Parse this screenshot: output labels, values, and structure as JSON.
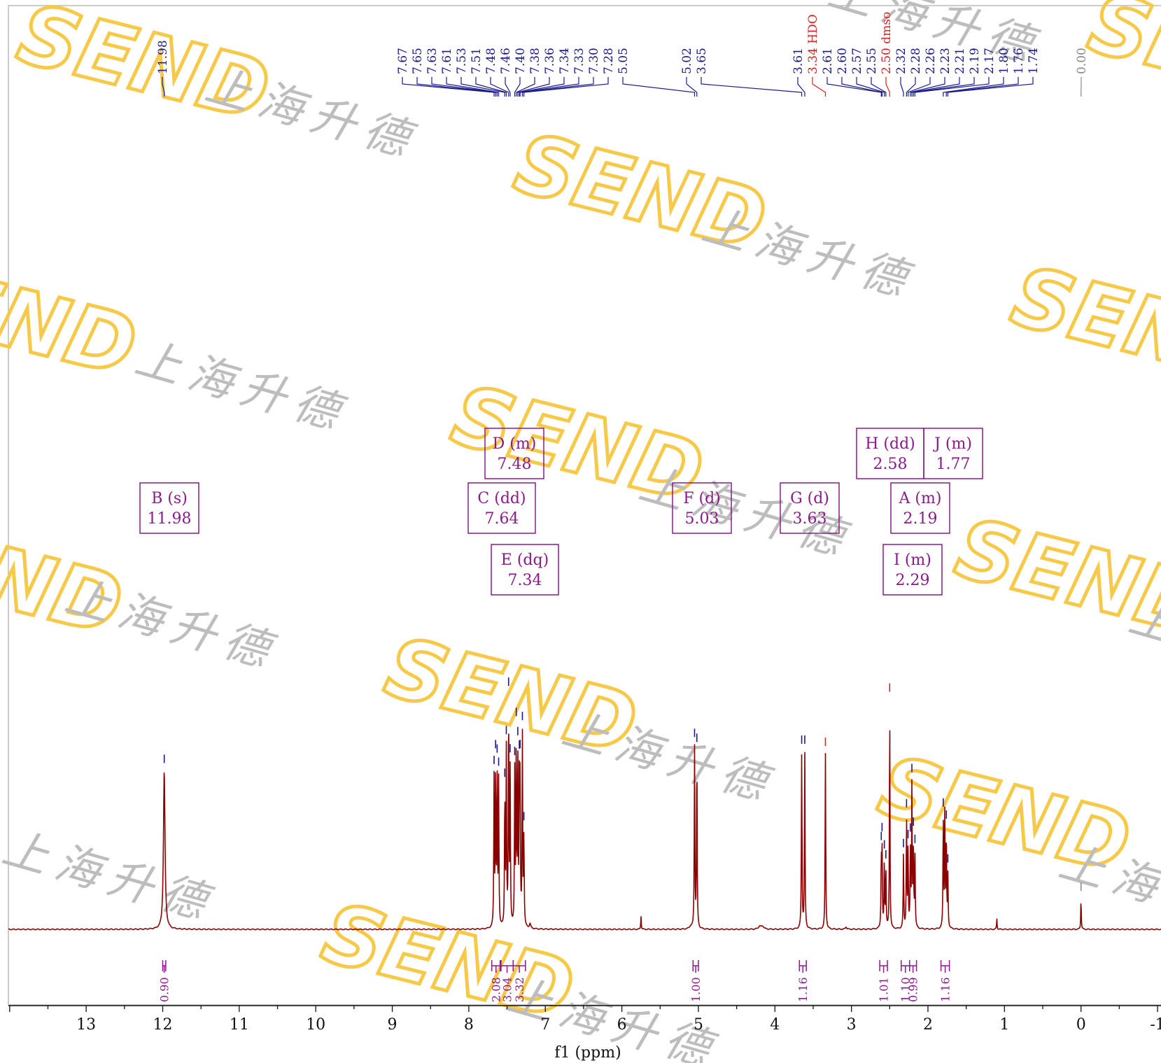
{
  "chart_data": {
    "type": "line",
    "xlabel": "f1 (ppm)",
    "xlim": [
      14,
      -1
    ],
    "x_ticks": [
      "13",
      "12",
      "11",
      "10",
      "9",
      "8",
      "7",
      "6",
      "5",
      "4",
      "3",
      "2",
      "1",
      "0",
      "-1"
    ],
    "peak_labels": [
      {
        "text": "11.98",
        "ppm": 11.98,
        "color": "#1a1a8c"
      },
      {
        "text": "7.67",
        "ppm": 7.67,
        "color": "#1a1a8c"
      },
      {
        "text": "7.65",
        "ppm": 7.65,
        "color": "#1a1a8c"
      },
      {
        "text": "7.63",
        "ppm": 7.63,
        "color": "#1a1a8c"
      },
      {
        "text": "7.61",
        "ppm": 7.61,
        "color": "#1a1a8c"
      },
      {
        "text": "7.53",
        "ppm": 7.53,
        "color": "#1a1a8c"
      },
      {
        "text": "7.51",
        "ppm": 7.51,
        "color": "#1a1a8c"
      },
      {
        "text": "7.48",
        "ppm": 7.48,
        "color": "#1a1a8c"
      },
      {
        "text": "7.46",
        "ppm": 7.46,
        "color": "#1a1a8c"
      },
      {
        "text": "7.40",
        "ppm": 7.4,
        "color": "#1a1a8c"
      },
      {
        "text": "7.38",
        "ppm": 7.38,
        "color": "#1a1a8c"
      },
      {
        "text": "7.36",
        "ppm": 7.36,
        "color": "#1a1a8c"
      },
      {
        "text": "7.34",
        "ppm": 7.34,
        "color": "#1a1a8c"
      },
      {
        "text": "7.33",
        "ppm": 7.33,
        "color": "#1a1a8c"
      },
      {
        "text": "7.30",
        "ppm": 7.3,
        "color": "#1a1a8c"
      },
      {
        "text": "7.28",
        "ppm": 7.28,
        "color": "#1a1a8c"
      },
      {
        "text": "5.05",
        "ppm": 5.05,
        "color": "#1a1a8c"
      },
      {
        "text": "5.02",
        "ppm": 5.02,
        "color": "#1a1a8c"
      },
      {
        "text": "3.65",
        "ppm": 3.65,
        "color": "#1a1a8c"
      },
      {
        "text": "3.61",
        "ppm": 3.61,
        "color": "#1a1a8c"
      },
      {
        "text": "3.34 HDO",
        "ppm": 3.34,
        "color": "#e02020"
      },
      {
        "text": "2.61",
        "ppm": 2.61,
        "color": "#1a1a8c"
      },
      {
        "text": "2.60",
        "ppm": 2.6,
        "color": "#1a1a8c"
      },
      {
        "text": "2.57",
        "ppm": 2.57,
        "color": "#1a1a8c"
      },
      {
        "text": "2.55",
        "ppm": 2.55,
        "color": "#1a1a8c"
      },
      {
        "text": "2.50 dmso",
        "ppm": 2.5,
        "color": "#e02020"
      },
      {
        "text": "2.32",
        "ppm": 2.32,
        "color": "#1a1a8c"
      },
      {
        "text": "2.28",
        "ppm": 2.28,
        "color": "#1a1a8c"
      },
      {
        "text": "2.26",
        "ppm": 2.26,
        "color": "#1a1a8c"
      },
      {
        "text": "2.23",
        "ppm": 2.23,
        "color": "#1a1a8c"
      },
      {
        "text": "2.21",
        "ppm": 2.21,
        "color": "#1a1a8c"
      },
      {
        "text": "2.19",
        "ppm": 2.19,
        "color": "#1a1a8c"
      },
      {
        "text": "2.17",
        "ppm": 2.17,
        "color": "#1a1a8c"
      },
      {
        "text": "1.80",
        "ppm": 1.8,
        "color": "#1a1a8c"
      },
      {
        "text": "1.76",
        "ppm": 1.76,
        "color": "#1a1a8c"
      },
      {
        "text": "1.74",
        "ppm": 1.74,
        "color": "#1a1a8c"
      },
      {
        "text": "0.00",
        "ppm": 0.0,
        "color": "#888888"
      }
    ],
    "multiplets": [
      {
        "label": "B (s)",
        "shift": "11.98"
      },
      {
        "label": "D (m)",
        "shift": "7.48"
      },
      {
        "label": "C (dd)",
        "shift": "7.64"
      },
      {
        "label": "E (dq)",
        "shift": "7.34"
      },
      {
        "label": "F (d)",
        "shift": "5.03"
      },
      {
        "label": "G (d)",
        "shift": "3.63"
      },
      {
        "label": "H (dd)",
        "shift": "2.58"
      },
      {
        "label": "J (m)",
        "shift": "1.77"
      },
      {
        "label": "A (m)",
        "shift": "2.19"
      },
      {
        "label": "I (m)",
        "shift": "2.29"
      }
    ],
    "integrals": [
      {
        "text": "0.90",
        "from": 12.0,
        "to": 11.96
      },
      {
        "text": "2.08",
        "from": 7.7,
        "to": 7.59
      },
      {
        "text": "3.04",
        "from": 7.58,
        "to": 7.42
      },
      {
        "text": "3.32",
        "from": 7.42,
        "to": 7.26
      },
      {
        "text": "1.00",
        "from": 5.07,
        "to": 5.0
      },
      {
        "text": "1.16",
        "from": 3.68,
        "to": 3.59
      },
      {
        "text": "1.01",
        "from": 2.63,
        "to": 2.53
      },
      {
        "text": "1.10",
        "from": 2.35,
        "to": 2.24
      },
      {
        "text": "0.99",
        "from": 2.24,
        "to": 2.15
      },
      {
        "text": "1.16",
        "from": 1.83,
        "to": 1.72
      }
    ],
    "peaks": [
      {
        "ppm": 11.98,
        "height": 0.66,
        "width": 0.012
      },
      {
        "ppm": 7.67,
        "height": 0.61,
        "width": 0.0045
      },
      {
        "ppm": 7.65,
        "height": 0.65,
        "width": 0.0045
      },
      {
        "ppm": 7.63,
        "height": 0.63,
        "width": 0.0045
      },
      {
        "ppm": 7.61,
        "height": 0.6,
        "width": 0.0045
      },
      {
        "ppm": 7.53,
        "height": 0.55,
        "width": 0.0045
      },
      {
        "ppm": 7.51,
        "height": 0.72,
        "width": 0.0045
      },
      {
        "ppm": 7.48,
        "height": 0.92,
        "width": 0.0045
      },
      {
        "ppm": 7.46,
        "height": 0.64,
        "width": 0.0045
      },
      {
        "ppm": 7.4,
        "height": 0.63,
        "width": 0.0045
      },
      {
        "ppm": 7.38,
        "height": 0.77,
        "width": 0.0045
      },
      {
        "ppm": 7.36,
        "height": 0.68,
        "width": 0.0045
      },
      {
        "ppm": 7.34,
        "height": 0.56,
        "width": 0.0045
      },
      {
        "ppm": 7.33,
        "height": 0.58,
        "width": 0.0045
      },
      {
        "ppm": 7.3,
        "height": 0.79,
        "width": 0.0045
      },
      {
        "ppm": 7.28,
        "height": 0.37,
        "width": 0.0045
      },
      {
        "ppm": 7.2,
        "height": 0.02,
        "width": 0.01
      },
      {
        "ppm": 5.75,
        "height": 0.055,
        "width": 0.004
      },
      {
        "ppm": 5.1,
        "height": 0.01,
        "width": 0.02
      },
      {
        "ppm": 5.05,
        "height": 0.75,
        "width": 0.0045
      },
      {
        "ppm": 5.02,
        "height": 0.73,
        "width": 0.0045
      },
      {
        "ppm": 4.2,
        "height": 0.012,
        "width": 0.02
      },
      {
        "ppm": 4.16,
        "height": 0.012,
        "width": 0.02
      },
      {
        "ppm": 3.65,
        "height": 0.73,
        "width": 0.0045
      },
      {
        "ppm": 3.61,
        "height": 0.73,
        "width": 0.0045
      },
      {
        "ppm": 3.34,
        "height": 0.73,
        "width": 0.0045
      },
      {
        "ppm": 3.07,
        "height": 0.01,
        "width": 0.01
      },
      {
        "ppm": 2.61,
        "height": 0.28,
        "width": 0.0045
      },
      {
        "ppm": 2.6,
        "height": 0.32,
        "width": 0.0045
      },
      {
        "ppm": 2.57,
        "height": 0.28,
        "width": 0.0045
      },
      {
        "ppm": 2.55,
        "height": 0.24,
        "width": 0.0045
      },
      {
        "ppm": 2.5,
        "height": 0.95,
        "width": 0.004
      },
      {
        "ppm": 2.32,
        "height": 0.3,
        "width": 0.0045
      },
      {
        "ppm": 2.28,
        "height": 0.45,
        "width": 0.0045
      },
      {
        "ppm": 2.26,
        "height": 0.31,
        "width": 0.0045
      },
      {
        "ppm": 2.23,
        "height": 0.33,
        "width": 0.0045
      },
      {
        "ppm": 2.21,
        "height": 0.58,
        "width": 0.0045
      },
      {
        "ppm": 2.19,
        "height": 0.35,
        "width": 0.0045
      },
      {
        "ppm": 2.17,
        "height": 0.3,
        "width": 0.0045
      },
      {
        "ppm": 1.8,
        "height": 0.45,
        "width": 0.0045
      },
      {
        "ppm": 1.78,
        "height": 0.47,
        "width": 0.0045
      },
      {
        "ppm": 1.76,
        "height": 0.39,
        "width": 0.0045
      },
      {
        "ppm": 1.74,
        "height": 0.22,
        "width": 0.0045
      },
      {
        "ppm": 1.1,
        "height": 0.045,
        "width": 0.004
      },
      {
        "ppm": 0.0,
        "height": 0.13,
        "width": 0.004
      }
    ]
  },
  "watermark": {
    "logo_text": "SEND",
    "cn_text": "上海升德",
    "logo_color": "#f7c948",
    "cn_color": "#bdbdbd"
  },
  "colors": {
    "spectrum": "#8b0000",
    "peak_label": "#1a1a8c",
    "solvent_label": "#e02020",
    "tms_label": "#888888",
    "annotation": "#8b1a8b",
    "axis": "#111111",
    "frame": "#bbbbbb"
  }
}
